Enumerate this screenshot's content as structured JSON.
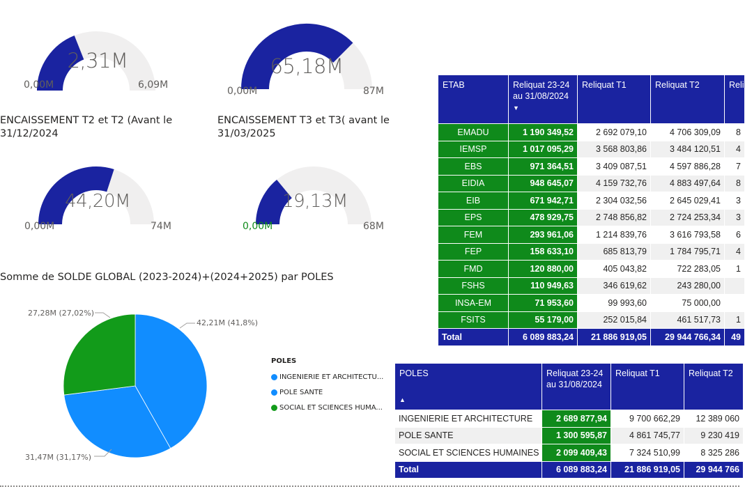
{
  "gauges": [
    {
      "id": "g1",
      "title": "",
      "value_label": "2,31M",
      "min_label": "0,00M",
      "max_label": "6,09M",
      "fraction": 0.38,
      "min_color": "#605e5c"
    },
    {
      "id": "g2",
      "title": "",
      "value_label": "65,18M",
      "min_label": "0,00M",
      "max_label": "87M",
      "fraction": 0.75,
      "min_color": "#605e5c"
    },
    {
      "id": "g3",
      "title": "ENCAISSEMENT T2 et T2 (Avant le 31/12/2024",
      "value_label": "44,20M",
      "min_label": "0,00M",
      "max_label": "74M",
      "fraction": 0.6,
      "min_color": "#605e5c"
    },
    {
      "id": "g4",
      "title": "ENCAISSEMENT T3 et T3( avant le 31/03/2025",
      "value_label": "19,13M",
      "min_label": "0,00M",
      "max_label": "68M",
      "fraction": 0.28,
      "min_color": "#0f8a1b"
    }
  ],
  "colors": {
    "gauge_fill": "#1a23a0",
    "gauge_track": "#f0efef",
    "header_blue": "#1a23a0",
    "highlight_green": "#0f8a1b"
  },
  "pie": {
    "title": "Somme de SOLDE GLOBAL (2023-2024)+(2024+2025) par POLES",
    "legend_title": "POLES",
    "slices": [
      {
        "name": "INGENIERIE ET ARCHITECTU...",
        "value": 42.21,
        "label": "42,21M (41,8%)",
        "color": "#118dff"
      },
      {
        "name": "POLE SANTE",
        "value": 31.47,
        "label": "31,47M (31,17%)",
        "color": "#118dff"
      },
      {
        "name": "SOCIAL ET SCIENCES HUMA...",
        "value": 27.28,
        "label": "27,28M (27,02%)",
        "color": "#129b1a"
      }
    ]
  },
  "etab_table": {
    "headers": [
      "ETAB",
      "Reliquat 23-24 au 31/08/2024",
      "Reliquat T1",
      "Reliquat T2",
      "Reli"
    ],
    "rows": [
      [
        "EMADU",
        "1 190 349,52",
        "2 692 079,10",
        "4 706 309,09",
        "8"
      ],
      [
        "IEMSP",
        "1 017 095,29",
        "3 568 803,86",
        "3 484 120,51",
        "4"
      ],
      [
        "EBS",
        "971 364,51",
        "3 409 087,51",
        "4 597 886,28",
        "7"
      ],
      [
        "EIDIA",
        "948 645,07",
        "4 159 732,76",
        "4 883 497,64",
        "8"
      ],
      [
        "EIB",
        "671 942,71",
        "2 304 032,56",
        "2 645 029,41",
        "3"
      ],
      [
        "EPS",
        "478 929,75",
        "2 748 856,82",
        "2 724 253,34",
        "3"
      ],
      [
        "FEM",
        "293 961,06",
        "1 214 839,76",
        "3 616 793,58",
        "6"
      ],
      [
        "FEP",
        "158 633,10",
        "685 813,79",
        "1 784 795,71",
        "4"
      ],
      [
        "FMD",
        "120 880,00",
        "405 043,82",
        "722 283,05",
        "1"
      ],
      [
        "FSHS",
        "110 949,63",
        "346 619,62",
        "243 280,00",
        ""
      ],
      [
        "INSA-EM",
        "71 953,60",
        "99 993,60",
        "75 000,00",
        ""
      ],
      [
        "FSITS",
        "55 179,00",
        "252 015,84",
        "461 517,73",
        "1"
      ]
    ],
    "total": [
      "Total",
      "6 089 883,24",
      "21 886 919,05",
      "29 944 766,34",
      "49"
    ]
  },
  "poles_table": {
    "headers": [
      "POLES",
      "Reliquat 23-24 au 31/08/2024",
      "Reliquat T1",
      "Reliquat T2"
    ],
    "rows": [
      [
        "INGENIERIE ET ARCHITECTURE",
        "2 689 877,94",
        "9 700 662,29",
        "12 389 060"
      ],
      [
        "POLE SANTE",
        "1 300 595,87",
        "4 861 745,77",
        "9 230 419"
      ],
      [
        "SOCIAL ET SCIENCES HUMAINES",
        "2 099 409,43",
        "7 324 510,99",
        "8 325 286"
      ]
    ],
    "total": [
      "Total",
      "6 089 883,24",
      "21 886 919,05",
      "29 944 766"
    ]
  }
}
